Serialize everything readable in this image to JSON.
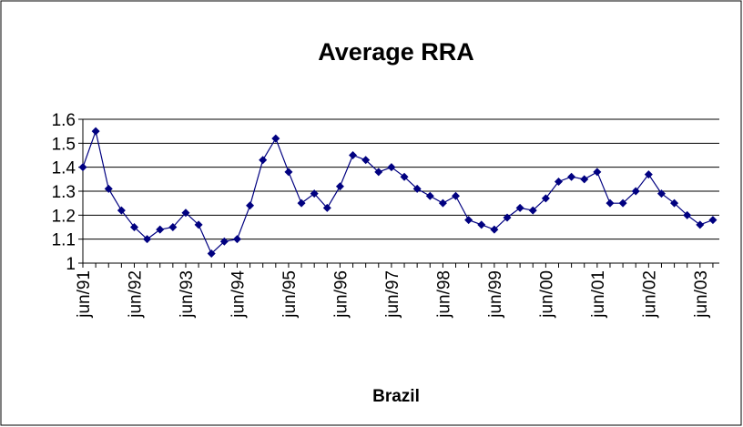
{
  "chart_data": {
    "type": "line",
    "title": "Average RRA",
    "x_label": "Brazil",
    "categories": [
      "jun/91",
      null,
      null,
      null,
      "jun/92",
      null,
      null,
      null,
      "jun/93",
      null,
      null,
      null,
      "jun/94",
      null,
      null,
      null,
      "jun/95",
      null,
      null,
      null,
      "jun/96",
      null,
      null,
      null,
      "jun/97",
      null,
      null,
      null,
      "jun/98",
      null,
      null,
      null,
      "jun/99",
      null,
      null,
      null,
      "jun/00",
      null,
      null,
      null,
      "jun/01",
      null,
      null,
      null,
      "jun/02",
      null,
      null,
      null,
      "jun/03",
      null
    ],
    "series": [
      {
        "name": "Brazil",
        "color": "#000080",
        "values": [
          1.4,
          1.55,
          1.31,
          1.22,
          1.15,
          1.1,
          1.14,
          1.15,
          1.21,
          1.16,
          1.04,
          1.09,
          1.1,
          1.24,
          1.43,
          1.52,
          1.38,
          1.25,
          1.29,
          1.23,
          1.32,
          1.45,
          1.43,
          1.38,
          1.4,
          1.36,
          1.31,
          1.28,
          1.25,
          1.28,
          1.18,
          1.16,
          1.14,
          1.19,
          1.23,
          1.22,
          1.27,
          1.34,
          1.36,
          1.35,
          1.38,
          1.25,
          1.25,
          1.3,
          1.37,
          1.29,
          1.25,
          1.2,
          1.16,
          1.18
        ]
      }
    ],
    "ylim": [
      1,
      1.6
    ],
    "yticks": [
      1,
      1.1,
      1.2,
      1.3,
      1.4,
      1.5,
      1.6
    ],
    "grid": true,
    "legend": false
  }
}
